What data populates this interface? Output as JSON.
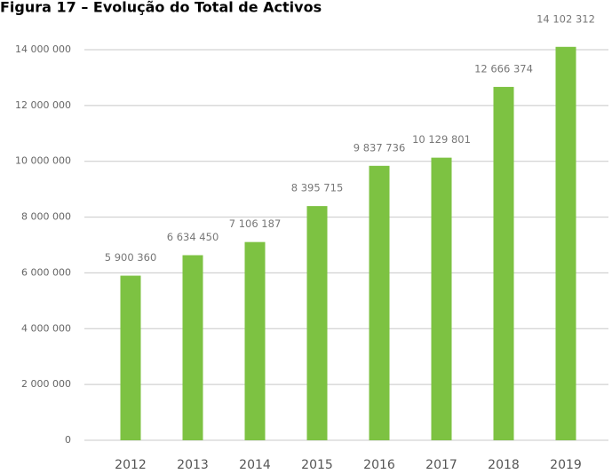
{
  "chart_data": {
    "type": "bar",
    "title": "Figura 17 – Evolução do Total de Activos",
    "categories": [
      "2012",
      "2013",
      "2014",
      "2015",
      "2016",
      "2017",
      "2018",
      "2019"
    ],
    "values": [
      5900360,
      6634450,
      7106187,
      8395715,
      9837736,
      10129801,
      12666374,
      14102312
    ],
    "value_labels": [
      "5 900 360",
      "6 634 450",
      "7 106 187",
      "8 395 715",
      "9 837 736",
      "10 129 801",
      "12 666 374",
      "14 102 312"
    ],
    "color": "#7dc242",
    "ylim": [
      0,
      14000000
    ],
    "yticks": [
      0,
      {
        "value": 2000000,
        "label": "2 000 000"
      },
      {
        "value": 4000000,
        "label": "4 000 000"
      },
      {
        "value": 6000000,
        "label": "6 000 000"
      },
      {
        "value": 8000000,
        "label": "8 000 000"
      },
      {
        "value": 10000000,
        "label": "10 000 000"
      },
      {
        "value": 12000000,
        "label": "12 000 000"
      },
      {
        "value": 14000000,
        "label": "14 000 000"
      }
    ],
    "grid": true
  }
}
